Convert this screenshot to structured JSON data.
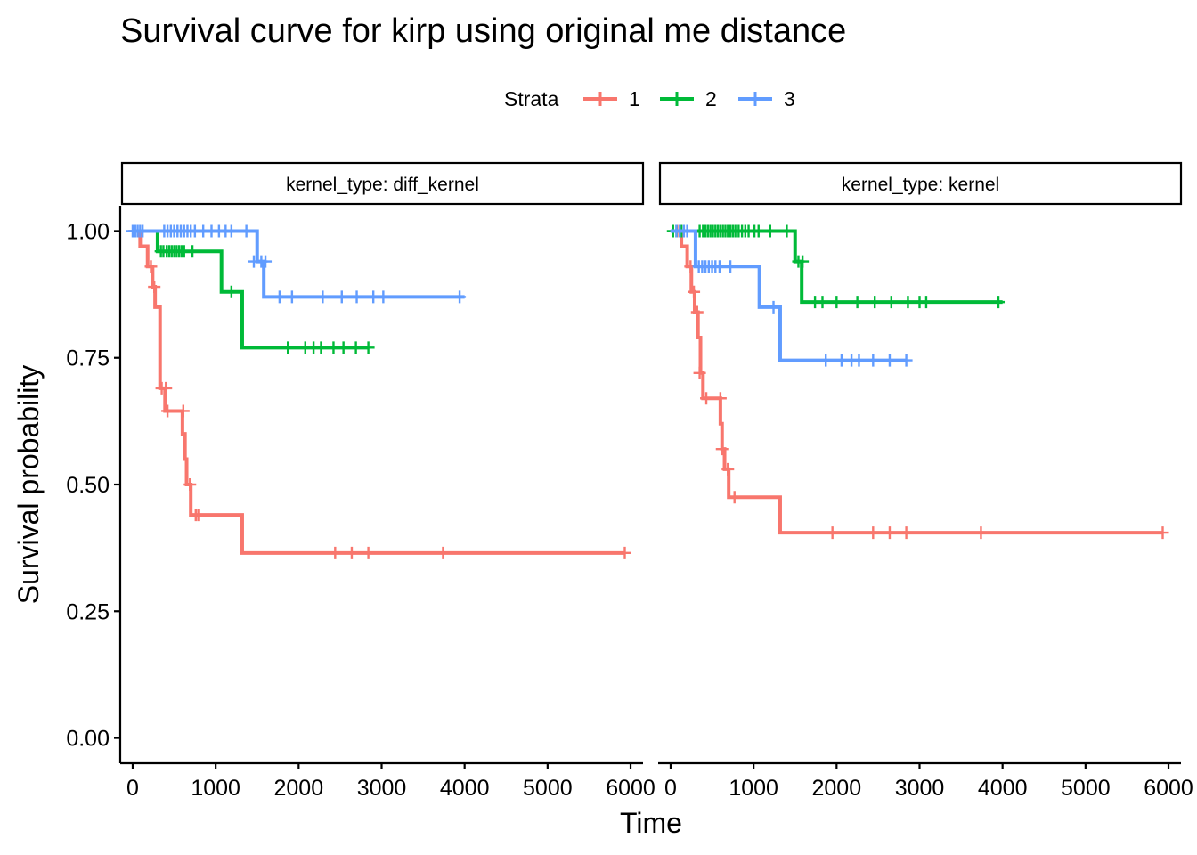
{
  "title": "Survival curve for kirp using original me distance",
  "chart_data": {
    "type": "line",
    "step": true,
    "title": "Survival curve for kirp using original me distance",
    "xlabel": "Time",
    "ylabel": "Survival probability",
    "xlim": [
      -150,
      6150
    ],
    "ylim": [
      -0.05,
      1.05
    ],
    "x_ticks": [
      0,
      1000,
      2000,
      3000,
      4000,
      5000,
      6000
    ],
    "x_tick_labels": [
      "0",
      "1000",
      "2000",
      "3000",
      "4000",
      "5000",
      "6000"
    ],
    "y_ticks": [
      0,
      0.25,
      0.5,
      0.75,
      1.0
    ],
    "y_tick_labels": [
      "0.00",
      "0.25",
      "0.50",
      "0.75",
      "1.00"
    ],
    "grid": false,
    "legend": {
      "title": "Strata",
      "placement": "top",
      "entries": [
        "1",
        "2",
        "3"
      ],
      "colors": [
        "#F8766D",
        "#00BA38",
        "#619CFF"
      ]
    },
    "panels": [
      {
        "strip": "kernel_type: diff_kernel",
        "series": [
          {
            "name": "1",
            "color": "#F8766D",
            "steps": [
              [
                0,
                1.0
              ],
              [
                90,
                0.97
              ],
              [
                180,
                0.93
              ],
              [
                240,
                0.89
              ],
              [
                270,
                0.85
              ],
              [
                330,
                0.69
              ],
              [
                390,
                0.645
              ],
              [
                600,
                0.6
              ],
              [
                630,
                0.55
              ],
              [
                650,
                0.5
              ],
              [
                700,
                0.44
              ],
              [
                1320,
                0.365
              ],
              [
                5930,
                0.365
              ]
            ],
            "censors": [
              [
                20,
                1.0
              ],
              [
                220,
                0.93
              ],
              [
                260,
                0.89
              ],
              [
                350,
                0.69
              ],
              [
                400,
                0.69
              ],
              [
                420,
                0.645
              ],
              [
                610,
                0.645
              ],
              [
                690,
                0.5
              ],
              [
                760,
                0.44
              ],
              [
                790,
                0.44
              ],
              [
                2440,
                0.365
              ],
              [
                2640,
                0.365
              ],
              [
                2840,
                0.365
              ],
              [
                3740,
                0.365
              ],
              [
                5930,
                0.365
              ]
            ]
          },
          {
            "name": "2",
            "color": "#00BA38",
            "steps": [
              [
                0,
                1.0
              ],
              [
                300,
                0.96
              ],
              [
                1070,
                0.88
              ],
              [
                1320,
                0.77
              ],
              [
                2840,
                0.77
              ]
            ],
            "censors": [
              [
                340,
                0.96
              ],
              [
                370,
                0.96
              ],
              [
                410,
                0.96
              ],
              [
                440,
                0.96
              ],
              [
                470,
                0.96
              ],
              [
                500,
                0.96
              ],
              [
                530,
                0.96
              ],
              [
                560,
                0.96
              ],
              [
                590,
                0.96
              ],
              [
                620,
                0.96
              ],
              [
                720,
                0.96
              ],
              [
                1190,
                0.88
              ],
              [
                1870,
                0.77
              ],
              [
                2080,
                0.77
              ],
              [
                2180,
                0.77
              ],
              [
                2270,
                0.77
              ],
              [
                2420,
                0.77
              ],
              [
                2540,
                0.77
              ],
              [
                2690,
                0.77
              ],
              [
                2840,
                0.77
              ]
            ]
          },
          {
            "name": "3",
            "color": "#619CFF",
            "steps": [
              [
                0,
                1.0
              ],
              [
                1500,
                0.94
              ],
              [
                1580,
                0.87
              ],
              [
                4000,
                0.87
              ]
            ],
            "censors": [
              [
                0,
                1.0
              ],
              [
                30,
                1.0
              ],
              [
                60,
                1.0
              ],
              [
                90,
                1.0
              ],
              [
                120,
                1.0
              ],
              [
                380,
                1.0
              ],
              [
                420,
                1.0
              ],
              [
                460,
                1.0
              ],
              [
                500,
                1.0
              ],
              [
                540,
                1.0
              ],
              [
                580,
                1.0
              ],
              [
                620,
                1.0
              ],
              [
                660,
                1.0
              ],
              [
                700,
                1.0
              ],
              [
                750,
                1.0
              ],
              [
                850,
                1.0
              ],
              [
                950,
                1.0
              ],
              [
                1040,
                1.0
              ],
              [
                1120,
                1.0
              ],
              [
                1190,
                1.0
              ],
              [
                1370,
                1.0
              ],
              [
                1460,
                0.94
              ],
              [
                1550,
                0.94
              ],
              [
                1600,
                0.94
              ],
              [
                1770,
                0.87
              ],
              [
                1920,
                0.87
              ],
              [
                2290,
                0.87
              ],
              [
                2520,
                0.87
              ],
              [
                2700,
                0.87
              ],
              [
                2900,
                0.87
              ],
              [
                3020,
                0.87
              ],
              [
                3940,
                0.87
              ]
            ]
          }
        ]
      },
      {
        "strip": "kernel_type: kernel",
        "series": [
          {
            "name": "1",
            "color": "#F8766D",
            "steps": [
              [
                0,
                1.0
              ],
              [
                130,
                0.97
              ],
              [
                200,
                0.93
              ],
              [
                250,
                0.88
              ],
              [
                290,
                0.84
              ],
              [
                330,
                0.79
              ],
              [
                360,
                0.72
              ],
              [
                390,
                0.67
              ],
              [
                600,
                0.62
              ],
              [
                620,
                0.57
              ],
              [
                650,
                0.53
              ],
              [
                700,
                0.475
              ],
              [
                1320,
                0.405
              ],
              [
                5930,
                0.405
              ]
            ],
            "censors": [
              [
                80,
                1.0
              ],
              [
                240,
                0.93
              ],
              [
                280,
                0.88
              ],
              [
                320,
                0.84
              ],
              [
                350,
                0.72
              ],
              [
                430,
                0.67
              ],
              [
                600,
                0.67
              ],
              [
                620,
                0.57
              ],
              [
                690,
                0.53
              ],
              [
                770,
                0.475
              ],
              [
                1950,
                0.405
              ],
              [
                2440,
                0.405
              ],
              [
                2640,
                0.405
              ],
              [
                2840,
                0.405
              ],
              [
                3740,
                0.405
              ],
              [
                5930,
                0.405
              ]
            ]
          },
          {
            "name": "2",
            "color": "#00BA38",
            "steps": [
              [
                0,
                1.0
              ],
              [
                1500,
                0.94
              ],
              [
                1580,
                0.86
              ],
              [
                4000,
                0.86
              ]
            ],
            "censors": [
              [
                30,
                1.0
              ],
              [
                70,
                1.0
              ],
              [
                130,
                1.0
              ],
              [
                350,
                1.0
              ],
              [
                390,
                1.0
              ],
              [
                420,
                1.0
              ],
              [
                450,
                1.0
              ],
              [
                480,
                1.0
              ],
              [
                510,
                1.0
              ],
              [
                540,
                1.0
              ],
              [
                570,
                1.0
              ],
              [
                600,
                1.0
              ],
              [
                630,
                1.0
              ],
              [
                660,
                1.0
              ],
              [
                690,
                1.0
              ],
              [
                720,
                1.0
              ],
              [
                750,
                1.0
              ],
              [
                780,
                1.0
              ],
              [
                820,
                1.0
              ],
              [
                860,
                1.0
              ],
              [
                900,
                1.0
              ],
              [
                940,
                1.0
              ],
              [
                1010,
                1.0
              ],
              [
                1060,
                1.0
              ],
              [
                1200,
                1.0
              ],
              [
                1400,
                1.0
              ],
              [
                1540,
                0.94
              ],
              [
                1590,
                0.94
              ],
              [
                1740,
                0.86
              ],
              [
                1830,
                0.86
              ],
              [
                2000,
                0.86
              ],
              [
                2250,
                0.86
              ],
              [
                2460,
                0.86
              ],
              [
                2660,
                0.86
              ],
              [
                2860,
                0.86
              ],
              [
                3000,
                0.86
              ],
              [
                3080,
                0.86
              ],
              [
                3950,
                0.86
              ]
            ]
          },
          {
            "name": "3",
            "color": "#619CFF",
            "steps": [
              [
                0,
                1.0
              ],
              [
                300,
                0.93
              ],
              [
                1070,
                0.85
              ],
              [
                1320,
                0.745
              ],
              [
                2840,
                0.745
              ]
            ],
            "censors": [
              [
                70,
                1.0
              ],
              [
                110,
                1.0
              ],
              [
                160,
                1.0
              ],
              [
                200,
                1.0
              ],
              [
                340,
                0.93
              ],
              [
                380,
                0.93
              ],
              [
                420,
                0.93
              ],
              [
                460,
                0.93
              ],
              [
                500,
                0.93
              ],
              [
                540,
                0.93
              ],
              [
                590,
                0.93
              ],
              [
                720,
                0.93
              ],
              [
                1240,
                0.85
              ],
              [
                1870,
                0.745
              ],
              [
                2060,
                0.745
              ],
              [
                2180,
                0.745
              ],
              [
                2270,
                0.745
              ],
              [
                2440,
                0.745
              ],
              [
                2640,
                0.745
              ],
              [
                2840,
                0.745
              ]
            ]
          }
        ]
      }
    ]
  }
}
